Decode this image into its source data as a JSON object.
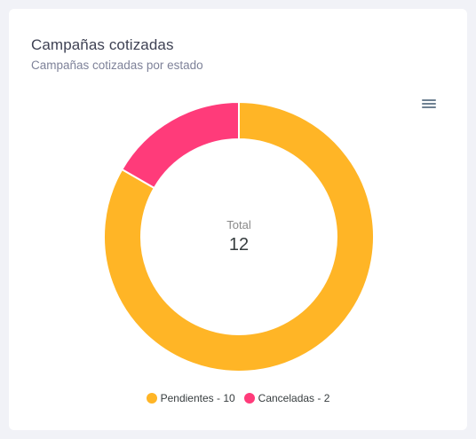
{
  "card": {
    "title": "Campañas cotizadas",
    "subtitle": "Campañas cotizadas por estado"
  },
  "menu": {
    "icon": "hamburger-menu-icon"
  },
  "chart_data": {
    "type": "pie",
    "donut": true,
    "title": "Campañas cotizadas",
    "subtitle": "Campañas cotizadas por estado",
    "center_label": "Total",
    "center_value": "12",
    "legend_position": "bottom",
    "slices": [
      {
        "name": "Pendientes",
        "value": 10,
        "color": "#ffb526",
        "legend": "Pendientes - 10"
      },
      {
        "name": "Canceladas",
        "value": 2,
        "color": "#ff3b7a",
        "legend": "Canceladas - 2"
      }
    ]
  }
}
